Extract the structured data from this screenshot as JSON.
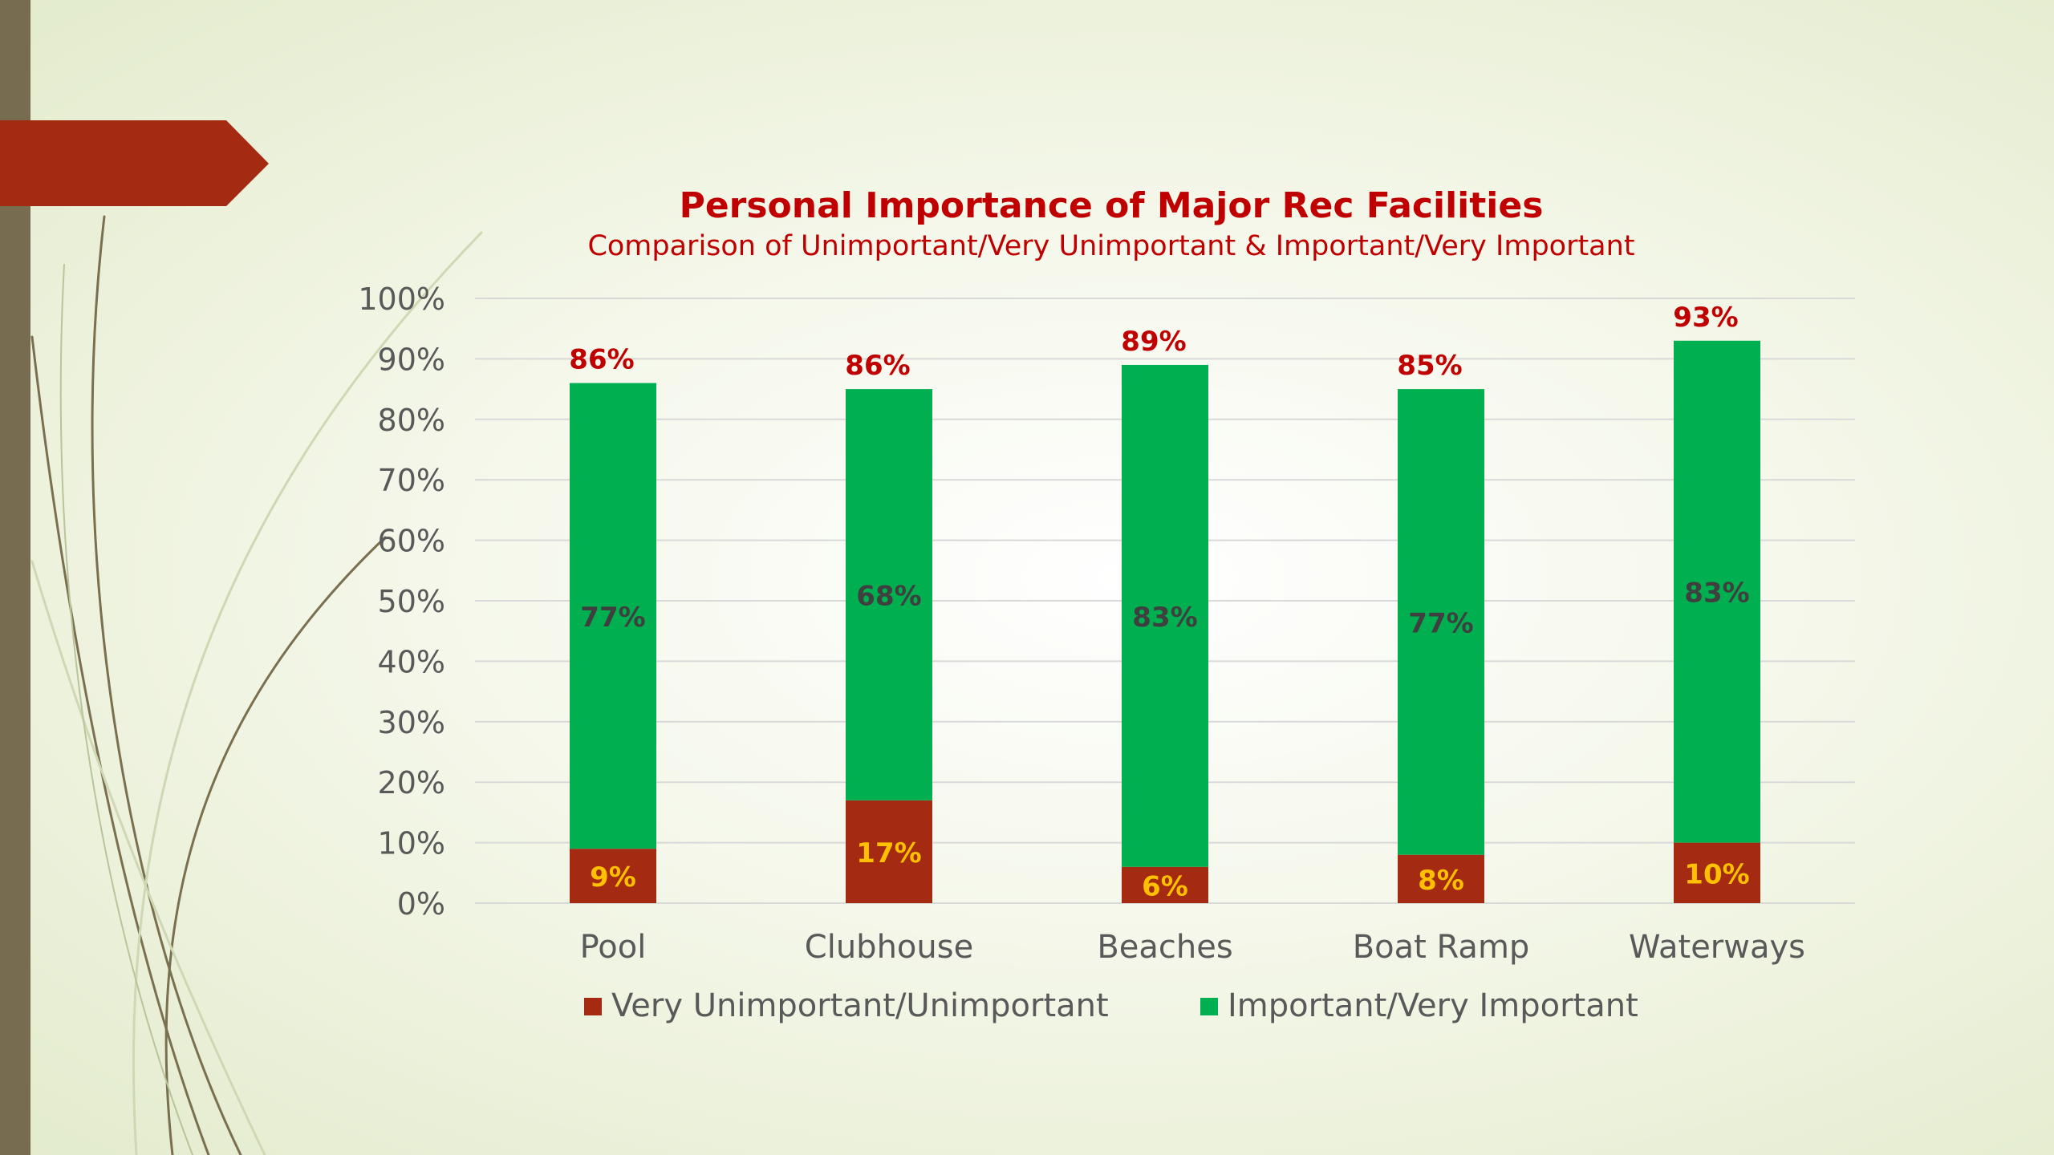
{
  "colors": {
    "series_unimportant": "#a52a12",
    "series_important": "#00b050",
    "title": "#c00000",
    "inner_label": "#ffc000",
    "important_label": "#3f3f3f",
    "total_label": "#c00000",
    "axis_text": "#595959",
    "accent_banner": "#a52a12",
    "left_bar": "#786c50"
  },
  "chart_data": {
    "type": "bar",
    "stacked": true,
    "title": "Personal Importance of Major Rec Facilities",
    "subtitle": "Comparison of Unimportant/Very Unimportant & Important/Very Important",
    "categories": [
      "Pool",
      "Clubhouse",
      "Beaches",
      "Boat Ramp",
      "Waterways"
    ],
    "series": [
      {
        "name": "Very Unimportant/Unimportant",
        "values": [
          9,
          17,
          6,
          8,
          10
        ],
        "labels": [
          "9%",
          "17%",
          "6%",
          "8%",
          "10%"
        ]
      },
      {
        "name": "Important/Very Important",
        "values": [
          77,
          68,
          83,
          77,
          83
        ],
        "labels": [
          "77%",
          "68%",
          "83%",
          "77%",
          "83%"
        ]
      }
    ],
    "totals": [
      "86%",
      "86%",
      "89%",
      "85%",
      "93%"
    ],
    "ylim": [
      0,
      100
    ],
    "yticks": [
      "0%",
      "10%",
      "20%",
      "30%",
      "40%",
      "50%",
      "60%",
      "70%",
      "80%",
      "90%",
      "100%"
    ],
    "grid": true,
    "legend_position": "bottom"
  }
}
